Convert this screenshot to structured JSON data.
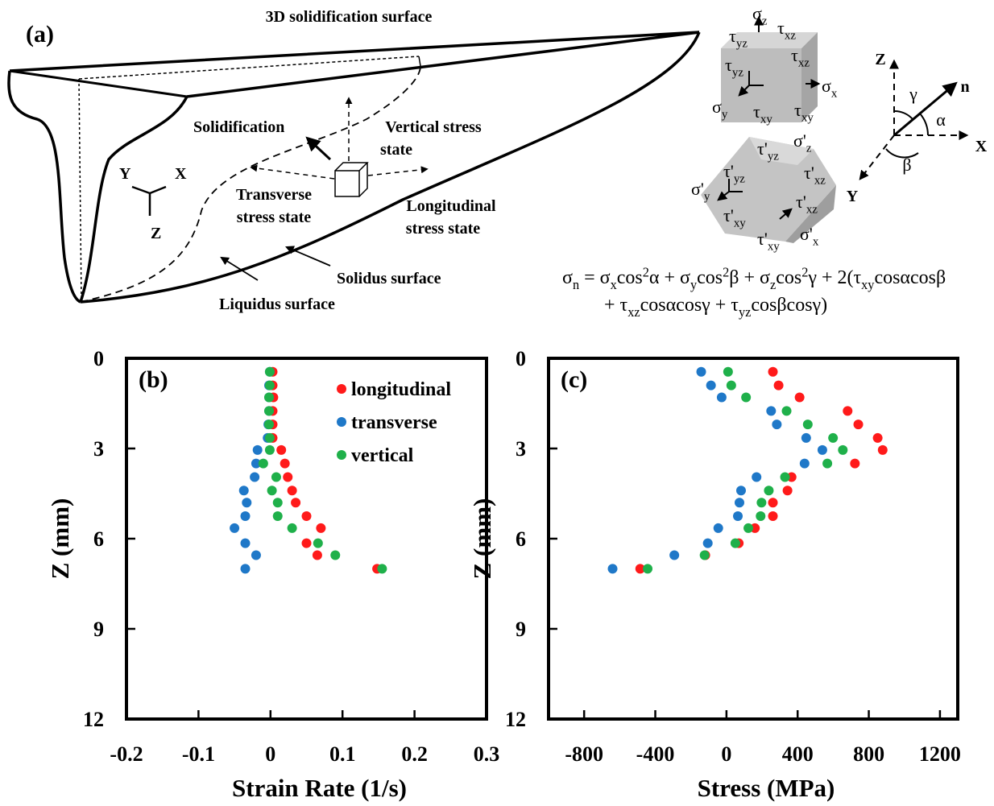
{
  "figure_a": {
    "label": "(a)",
    "title": "3D solidification surface",
    "annotations": {
      "solidification": "Solidification",
      "vertical": [
        "Vertical stress",
        "state"
      ],
      "transverse": [
        "Transverse",
        "stress state"
      ],
      "longitudinal": [
        "Longitudinal",
        "stress state"
      ],
      "solidus": "Solidus surface",
      "liquidus": "Liquidus surface"
    },
    "local_axes": {
      "x": "X",
      "y": "Y",
      "z": "Z"
    },
    "cube1": [
      [
        "σ",
        "z"
      ],
      [
        "τ",
        "yz"
      ],
      [
        "τ",
        "xz"
      ],
      [
        "τ",
        "yz"
      ],
      [
        "τ",
        "xz"
      ],
      [
        "σ",
        "x"
      ],
      [
        "σ",
        "y"
      ],
      [
        "τ",
        "xy"
      ],
      [
        "τ",
        "xy"
      ]
    ],
    "cube2": [
      [
        "τ'",
        "yz"
      ],
      [
        "σ'",
        "z"
      ],
      [
        "σ'",
        "y"
      ],
      [
        "τ'",
        "yz"
      ],
      [
        "τ'",
        "xz"
      ],
      [
        "τ'",
        "xz"
      ],
      [
        "τ'",
        "xy"
      ],
      [
        "τ'",
        "xy"
      ],
      [
        "σ'",
        "x"
      ]
    ],
    "direction_axes": {
      "z": "Z",
      "x": "X",
      "y": "Y",
      "n": "n",
      "gamma": "γ",
      "alpha": "α",
      "beta": "β"
    },
    "equation": [
      [
        "σ",
        "n",
        " = σ",
        "x",
        "cos",
        "2",
        "α + σ",
        "y",
        "cos",
        "2",
        "β + σ",
        "z",
        "cos",
        "2",
        "γ + 2(τ",
        "xy",
        "cosαcosβ"
      ],
      [
        "+  τ",
        "xz",
        "cosαcosγ + τ",
        "yz",
        "cosβcosγ)"
      ]
    ]
  },
  "chart_data": [
    {
      "type": "scatter",
      "panel_label": "(b)",
      "x_label": "Strain Rate (1/s)",
      "y_label": "Z (mm)",
      "xlim": [
        -0.2,
        0.3
      ],
      "xticks": [
        -0.2,
        -0.1,
        0,
        0.1,
        0.2,
        0.3
      ],
      "ylim": [
        0,
        12
      ],
      "yticks": [
        0,
        3,
        6,
        9,
        12
      ],
      "y_inverted": true,
      "legend": "upper right",
      "series": [
        {
          "name": "longitudinal",
          "color": "#ff1a1a",
          "x": [
            0.003,
            0.003,
            0.004,
            0.003,
            0.003,
            0.003,
            0.015,
            0.02,
            0.024,
            0.03,
            0.035,
            0.05,
            0.07,
            0.05,
            0.065,
            0.148
          ],
          "values": [
            0.45,
            0.9,
            1.3,
            1.75,
            2.2,
            2.65,
            3.05,
            3.5,
            3.95,
            4.4,
            4.8,
            5.25,
            5.65,
            6.15,
            6.55,
            7.0
          ]
        },
        {
          "name": "transverse",
          "color": "#1f78c8",
          "x": [
            -0.001,
            -0.002,
            -0.002,
            -0.002,
            -0.003,
            -0.004,
            -0.018,
            -0.02,
            -0.022,
            -0.037,
            -0.033,
            -0.035,
            -0.05,
            -0.035,
            -0.02,
            -0.035
          ],
          "values": [
            0.45,
            0.9,
            1.3,
            1.75,
            2.2,
            2.65,
            3.05,
            3.5,
            3.95,
            4.4,
            4.8,
            5.25,
            5.65,
            6.15,
            6.55,
            7.0
          ]
        },
        {
          "name": "vertical",
          "color": "#1fb04a",
          "x": [
            -0.001,
            -0.001,
            -0.002,
            -0.002,
            -0.002,
            -0.001,
            -0.001,
            -0.01,
            0.008,
            0.002,
            0.01,
            0.01,
            0.03,
            0.066,
            0.09,
            0.155
          ],
          "values": [
            0.45,
            0.9,
            1.3,
            1.75,
            2.2,
            2.65,
            3.05,
            3.5,
            3.95,
            4.4,
            4.8,
            5.25,
            5.65,
            6.15,
            6.55,
            7.0
          ]
        }
      ]
    },
    {
      "type": "scatter",
      "panel_label": "(c)",
      "x_label": "Stress (MPa)",
      "y_label": "Z (mm)",
      "xlim": [
        -1000,
        1300
      ],
      "xticks": [
        -800,
        -400,
        0,
        400,
        800,
        1200
      ],
      "ylim": [
        0,
        12
      ],
      "yticks": [
        0,
        3,
        6,
        9,
        12
      ],
      "y_inverted": true,
      "series": [
        {
          "color": "#ff1a1a",
          "x": [
            261,
            293,
            411,
            681,
            741,
            850,
            878,
            722,
            366,
            343,
            261,
            261,
            160,
            69,
            -119,
            -485
          ],
          "values": [
            0.45,
            0.9,
            1.3,
            1.75,
            2.2,
            2.65,
            3.05,
            3.5,
            3.95,
            4.4,
            4.8,
            5.25,
            5.65,
            6.15,
            6.55,
            7.0
          ]
        },
        {
          "color": "#1f78c8",
          "x": [
            -142,
            -87,
            -27,
            251,
            283,
            448,
            539,
            439,
            169,
            82,
            73,
            64,
            -46,
            -105,
            -293,
            -640
          ],
          "values": [
            0.45,
            0.9,
            1.3,
            1.75,
            2.2,
            2.65,
            3.05,
            3.5,
            3.95,
            4.4,
            4.8,
            5.25,
            5.65,
            6.15,
            6.55,
            7.0
          ]
        },
        {
          "color": "#1fb04a",
          "x": [
            9,
            27,
            110,
            338,
            457,
            599,
            654,
            567,
            329,
            238,
            197,
            192,
            123,
            50,
            -123,
            -443
          ],
          "values": [
            0.45,
            0.9,
            1.3,
            1.75,
            2.2,
            2.65,
            3.05,
            3.5,
            3.95,
            4.4,
            4.8,
            5.25,
            5.65,
            6.15,
            6.55,
            7.0
          ]
        }
      ]
    }
  ]
}
